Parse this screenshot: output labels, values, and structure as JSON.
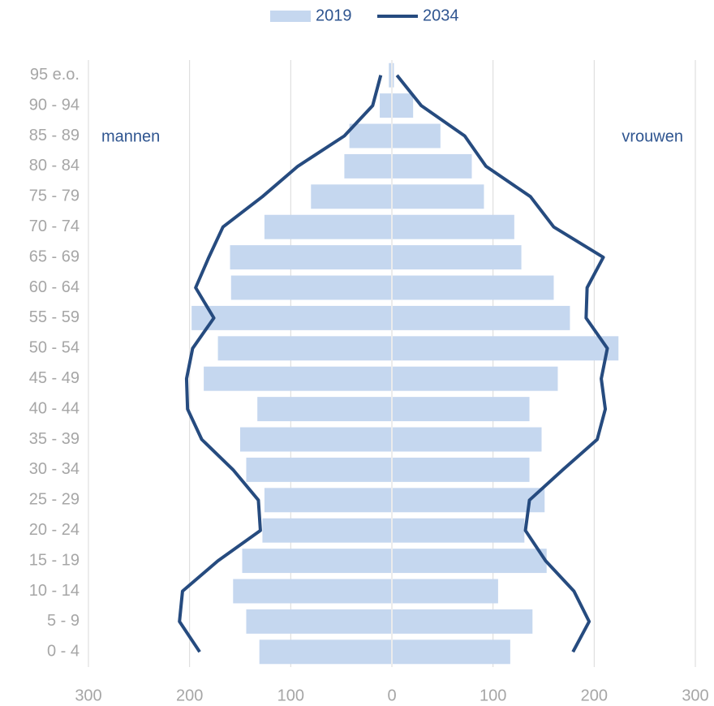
{
  "chart_data": {
    "type": "pyramid",
    "categories": [
      "0 - 4",
      "5 - 9",
      "10 - 14",
      "15 - 19",
      "20 - 24",
      "25 - 29",
      "30 - 34",
      "35 - 39",
      "40 - 44",
      "45 - 49",
      "50 - 54",
      "55 - 59",
      "60 - 64",
      "65 - 69",
      "70 - 74",
      "75 - 79",
      "80 - 84",
      "85 - 89",
      "90 - 94",
      "95 e.o."
    ],
    "annotations": {
      "left": "mannen",
      "right": "vrouwen"
    },
    "series": [
      {
        "name": "2019",
        "mark": "bar",
        "color": "#c5d7ef",
        "men": [
          -131,
          -144,
          -157,
          -148,
          -128,
          -126,
          -144,
          -150,
          -133,
          -186,
          -172,
          -198,
          -159,
          -160,
          -126,
          -80,
          -47,
          -42,
          -12,
          -3
        ],
        "women": [
          117,
          139,
          105,
          153,
          131,
          151,
          136,
          148,
          136,
          164,
          224,
          176,
          160,
          128,
          121,
          91,
          79,
          48,
          21,
          2
        ]
      },
      {
        "name": "2034",
        "mark": "line",
        "color": "#264b7f",
        "men": [
          -190,
          -210,
          -207,
          -172,
          -130,
          -132,
          -157,
          -188,
          -202,
          -203,
          -197,
          -176,
          -194,
          -181,
          -167,
          -128,
          -93,
          -47,
          -19,
          -11
        ],
        "women": [
          179,
          195,
          180,
          152,
          132,
          136,
          169,
          203,
          211,
          207,
          213,
          192,
          193,
          209,
          160,
          137,
          93,
          72,
          29,
          5
        ]
      }
    ],
    "xlim": [
      -300,
      300
    ],
    "xticks": [
      {
        "value": -300,
        "label": "300"
      },
      {
        "value": -200,
        "label": "200"
      },
      {
        "value": -100,
        "label": "100"
      },
      0,
      100,
      200,
      300
    ],
    "grid": true
  }
}
